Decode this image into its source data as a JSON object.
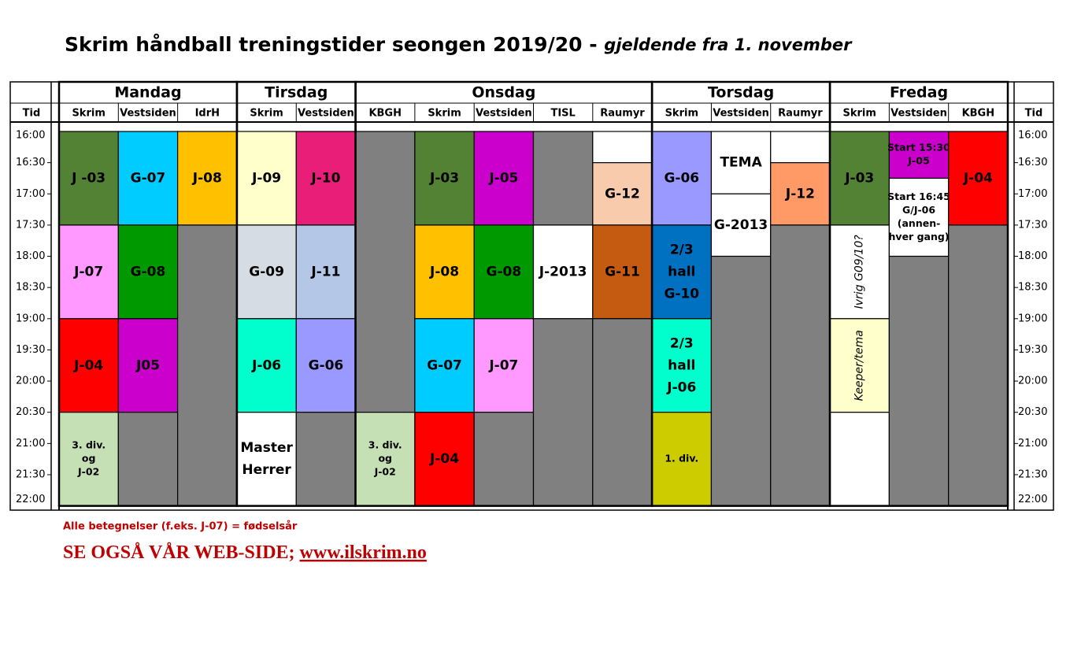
{
  "header": {
    "title": "Skrim håndball treningstider seongen 2019/20 - ",
    "subtitle": "gjeldende fra 1. november"
  },
  "time_column_label": "Tid",
  "times": [
    "16:00",
    "16:30",
    "17:00",
    "17:30",
    "18:00",
    "18:30",
    "19:00",
    "19:30",
    "20:00",
    "20:30",
    "21:00",
    "21:30",
    "22:00"
  ],
  "days": [
    {
      "name": "Mandag",
      "venues": [
        {
          "name": "Skrim",
          "blocks": [
            {
              "start": "16:00",
              "end": "17:30",
              "color": "#548235",
              "label": [
                "J -03"
              ]
            },
            {
              "start": "17:30",
              "end": "19:00",
              "color": "#ff99ff",
              "label": [
                "J-07"
              ]
            },
            {
              "start": "19:00",
              "end": "20:30",
              "color": "#ff0000",
              "label": [
                "J-04"
              ]
            },
            {
              "start": "20:30",
              "end": "22:00",
              "color": "#c5e0b4",
              "label": [
                "3. div.",
                "og",
                "J-02"
              ]
            }
          ]
        },
        {
          "name": "Vestsiden",
          "blocks": [
            {
              "start": "16:00",
              "end": "17:30",
              "color": "#00ccff",
              "label": [
                "G-07"
              ]
            },
            {
              "start": "17:30",
              "end": "19:00",
              "color": "#009900",
              "label": [
                "G-08"
              ]
            },
            {
              "start": "19:00",
              "end": "20:30",
              "color": "#cc00cc",
              "label": [
                "J05"
              ]
            },
            {
              "start": "20:30",
              "end": "22:00",
              "color": "#808080"
            }
          ]
        },
        {
          "name": "IdrH",
          "blocks": [
            {
              "start": "16:00",
              "end": "17:30",
              "color": "#ffc000",
              "label": [
                "J-08"
              ]
            },
            {
              "start": "17:30",
              "end": "22:00",
              "color": "#808080"
            }
          ]
        }
      ]
    },
    {
      "name": "Tirsdag",
      "venues": [
        {
          "name": "Skrim",
          "blocks": [
            {
              "start": "16:00",
              "end": "17:30",
              "color": "#ffffcc",
              "label": [
                "J-09"
              ]
            },
            {
              "start": "17:30",
              "end": "19:00",
              "color": "#d6dce4",
              "label": [
                "G-09"
              ]
            },
            {
              "start": "19:00",
              "end": "20:30",
              "color": "#00ffcc",
              "label": [
                "J-06"
              ]
            },
            {
              "start": "20:30",
              "end": "22:00",
              "color": "#ffffff",
              "label": [
                "Master",
                "Herrer"
              ]
            }
          ]
        },
        {
          "name": "Vestsiden",
          "blocks": [
            {
              "start": "16:00",
              "end": "17:30",
              "color": "#e91e79",
              "label": [
                "J-10"
              ]
            },
            {
              "start": "17:30",
              "end": "19:00",
              "color": "#b4c7e7",
              "label": [
                "J-11"
              ]
            },
            {
              "start": "19:00",
              "end": "20:30",
              "color": "#9999ff",
              "label": [
                "G-06"
              ]
            },
            {
              "start": "20:30",
              "end": "22:00",
              "color": "#808080"
            }
          ]
        }
      ]
    },
    {
      "name": "Onsdag",
      "venues": [
        {
          "name": "KBGH",
          "blocks": [
            {
              "start": "16:00",
              "end": "20:30",
              "color": "#808080"
            },
            {
              "start": "20:30",
              "end": "22:00",
              "color": "#c5e0b4",
              "label": [
                "3. div.",
                "og",
                "J-02"
              ]
            }
          ]
        },
        {
          "name": "Skrim",
          "blocks": [
            {
              "start": "16:00",
              "end": "17:30",
              "color": "#548235",
              "label": [
                "J-03"
              ]
            },
            {
              "start": "17:30",
              "end": "19:00",
              "color": "#ffc000",
              "label": [
                "J-08"
              ]
            },
            {
              "start": "19:00",
              "end": "20:30",
              "color": "#00ccff",
              "label": [
                "G-07"
              ]
            },
            {
              "start": "20:30",
              "end": "22:00",
              "color": "#ff0000",
              "label": [
                "J-04"
              ]
            }
          ]
        },
        {
          "name": "Vestsiden",
          "blocks": [
            {
              "start": "16:00",
              "end": "17:30",
              "color": "#cc00cc",
              "label": [
                "J-05"
              ]
            },
            {
              "start": "17:30",
              "end": "19:00",
              "color": "#009900",
              "label": [
                "G-08"
              ]
            },
            {
              "start": "19:00",
              "end": "20:30",
              "color": "#ff99ff",
              "label": [
                "J-07"
              ]
            },
            {
              "start": "20:30",
              "end": "22:00",
              "color": "#808080"
            }
          ]
        },
        {
          "name": "TISL",
          "blocks": [
            {
              "start": "16:00",
              "end": "17:30",
              "color": "#808080"
            },
            {
              "start": "17:30",
              "end": "19:00",
              "color": "#ffffff",
              "label": [
                "J-2013"
              ]
            },
            {
              "start": "19:00",
              "end": "22:00",
              "color": "#808080"
            }
          ]
        },
        {
          "name": "Raumyr",
          "blocks": [
            {
              "start": "16:00",
              "end": "16:30",
              "color": "#ffffff"
            },
            {
              "start": "16:30",
              "end": "17:30",
              "color": "#f8cbad",
              "label": [
                "G-12"
              ]
            },
            {
              "start": "17:30",
              "end": "19:00",
              "color": "#c55a11",
              "label": [
                "G-11"
              ]
            },
            {
              "start": "19:00",
              "end": "22:00",
              "color": "#808080"
            }
          ]
        }
      ]
    },
    {
      "name": "Torsdag",
      "venues": [
        {
          "name": "Skrim",
          "blocks": [
            {
              "start": "16:00",
              "end": "17:30",
              "color": "#9999ff",
              "label": [
                "G-06"
              ]
            },
            {
              "start": "17:30",
              "end": "19:00",
              "color": "#0070c0",
              "label": [
                "2/3",
                "hall",
                "G-10"
              ]
            },
            {
              "start": "19:00",
              "end": "20:30",
              "color": "#00ffcc",
              "label": [
                "2/3",
                "hall",
                "J-06"
              ]
            },
            {
              "start": "20:30",
              "end": "22:00",
              "color": "#cccc00",
              "label": [
                "1. div."
              ]
            }
          ]
        },
        {
          "name": "Vestsiden",
          "blocks": [
            {
              "start": "16:00",
              "end": "17:00",
              "color": "#ffffff",
              "label": [
                "TEMA"
              ]
            },
            {
              "start": "17:00",
              "end": "18:00",
              "color": "#ffffff",
              "label": [
                "G-2013"
              ]
            },
            {
              "start": "18:00",
              "end": "22:00",
              "color": "#808080"
            }
          ]
        },
        {
          "name": "Raumyr",
          "blocks": [
            {
              "start": "16:00",
              "end": "16:30",
              "color": "#ffffff"
            },
            {
              "start": "16:30",
              "end": "17:30",
              "color": "#ff9966",
              "label": [
                "J-12"
              ]
            },
            {
              "start": "17:30",
              "end": "22:00",
              "color": "#808080"
            }
          ]
        }
      ]
    },
    {
      "name": "Fredag",
      "venues": [
        {
          "name": "Skrim",
          "blocks": [
            {
              "start": "16:00",
              "end": "17:30",
              "color": "#548235",
              "label": [
                "J-03"
              ]
            },
            {
              "start": "17:30",
              "end": "19:00",
              "color": "#ffffff",
              "vertical": true,
              "label": [
                "Ivrig G09/10?"
              ]
            },
            {
              "start": "19:00",
              "end": "20:30",
              "color": "#ffffcc",
              "vertical": true,
              "label": [
                "Keeper/tema"
              ]
            },
            {
              "start": "20:30",
              "end": "22:00",
              "color": "#ffffff"
            }
          ]
        },
        {
          "name": "Vestsiden",
          "blocks": [
            {
              "start": "16:00",
              "end": "16:45",
              "color": "#cc00cc",
              "label": [
                "Start 15:30",
                "J-05"
              ]
            },
            {
              "start": "16:45",
              "end": "18:00",
              "color": "#ffffff",
              "label": [
                "Start 16:45",
                "G/J-06",
                "(annen-",
                "hver gang)"
              ]
            },
            {
              "start": "18:00",
              "end": "22:00",
              "color": "#808080"
            }
          ]
        },
        {
          "name": "KBGH",
          "blocks": [
            {
              "start": "16:00",
              "end": "17:30",
              "color": "#ff0000",
              "label": [
                "J-04"
              ]
            },
            {
              "start": "17:30",
              "end": "22:00",
              "color": "#808080"
            }
          ]
        }
      ]
    }
  ],
  "footer": {
    "note": "Alle betegnelser (f.eks. J-07) = fødselsår",
    "see_also": "SE OGSÅ VÅR WEB-SIDE; ",
    "link": "www.ilskrim.no"
  }
}
